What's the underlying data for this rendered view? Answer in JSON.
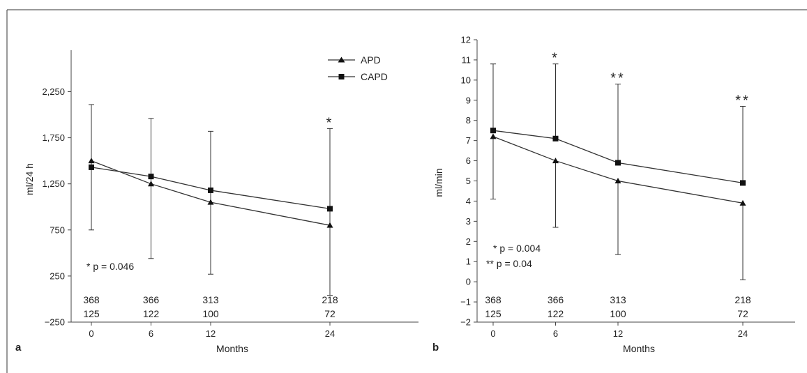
{
  "chart_data": [
    {
      "type": "line",
      "panel_label": "a",
      "xlabel": "Months",
      "ylabel": "ml/24 h",
      "x": [
        0,
        6,
        12,
        24
      ],
      "x_ticks": [
        "0",
        "6",
        "12",
        "24"
      ],
      "y_ticks": [
        "−250",
        "250",
        "750",
        "1,250",
        "1,750",
        "2,250"
      ],
      "y_tick_values": [
        -250,
        250,
        750,
        1250,
        1750,
        2250
      ],
      "ylim": [
        -250,
        2700
      ],
      "xlim": [
        -1,
        27
      ],
      "grid": false,
      "legend_placement": "top-right",
      "series": [
        {
          "name": "APD",
          "marker": "triangle",
          "values": [
            1500,
            1250,
            1050,
            800
          ],
          "err_low": [
            750,
            440,
            270,
            40
          ],
          "err_high": [
            2110,
            1960,
            1820,
            1850
          ]
        },
        {
          "name": "CAPD",
          "marker": "square",
          "values": [
            1430,
            1330,
            1180,
            980
          ],
          "err_low": null,
          "err_high": null
        }
      ],
      "counts": [
        [
          "368",
          "366",
          "313",
          "218"
        ],
        [
          "125",
          "122",
          "100",
          "72"
        ]
      ],
      "significance": [
        {
          "x": 24,
          "label": "*"
        }
      ],
      "annotations": [
        "* p = 0.046"
      ]
    },
    {
      "type": "line",
      "panel_label": "b",
      "xlabel": "Months",
      "ylabel": "ml/min",
      "x": [
        0,
        6,
        12,
        24
      ],
      "x_ticks": [
        "0",
        "6",
        "12",
        "24"
      ],
      "y_ticks": [
        "−2",
        "−1",
        "0",
        "1",
        "2",
        "3",
        "4",
        "5",
        "6",
        "7",
        "8",
        "9",
        "10",
        "11",
        "12"
      ],
      "y_tick_values": [
        -2,
        -1,
        0,
        1,
        2,
        3,
        4,
        5,
        6,
        7,
        8,
        9,
        10,
        11,
        12
      ],
      "ylim": [
        -2,
        12
      ],
      "xlim": [
        -1,
        27
      ],
      "grid": false,
      "series": [
        {
          "name": "APD",
          "marker": "triangle",
          "values": [
            7.2,
            6.0,
            5.0,
            3.9
          ],
          "err_low": [
            4.1,
            2.7,
            1.35,
            0.1
          ],
          "err_high": null
        },
        {
          "name": "CAPD",
          "marker": "square",
          "values": [
            7.5,
            7.1,
            5.9,
            4.9
          ],
          "err_low": null,
          "err_high": [
            10.8,
            10.8,
            9.8,
            8.7
          ]
        }
      ],
      "counts": [
        [
          "368",
          "366",
          "313",
          "218"
        ],
        [
          "125",
          "122",
          "100",
          "72"
        ]
      ],
      "significance": [
        {
          "x": 6,
          "label": "*"
        },
        {
          "x": 12,
          "label": "**"
        },
        {
          "x": 24,
          "label": "**"
        }
      ],
      "annotations": [
        "* p = 0.004",
        "** p = 0.04"
      ]
    }
  ]
}
